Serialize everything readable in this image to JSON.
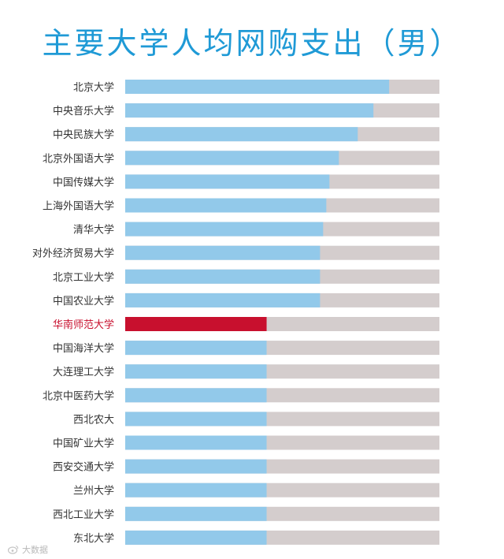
{
  "colors": {
    "title": "#1f9ad6",
    "bar": "#92c9ea",
    "highlight_bar": "#c8102e",
    "track": "#d4cdcd",
    "label": "#333333",
    "highlight_label": "#c8102e"
  },
  "watermark": "大数据",
  "chart_data": {
    "type": "bar",
    "orientation": "horizontal",
    "title": "主要大学人均网购支出（男）",
    "xlabel": "",
    "ylabel": "",
    "xlim": [
      0,
      100
    ],
    "grid": false,
    "highlight": "华南师范大学",
    "categories": [
      "北京大学",
      "中央音乐大学",
      "中央民族大学",
      "北京外国语大学",
      "中国传媒大学",
      "上海外国语大学",
      "清华大学",
      "对外经济贸易大学",
      "北京工业大学",
      "中国农业大学",
      "华南师范大学",
      "中国海洋大学",
      "大连理工大学",
      "北京中医药大学",
      "西北农大",
      "中国矿业大学",
      "西安交通大学",
      "兰州大学",
      "西北工业大学",
      "东北大学"
    ],
    "values": [
      84,
      79,
      74,
      68,
      65,
      64,
      63,
      62,
      62,
      62,
      45,
      45,
      45,
      45,
      45,
      45,
      45,
      45,
      45,
      45
    ]
  }
}
